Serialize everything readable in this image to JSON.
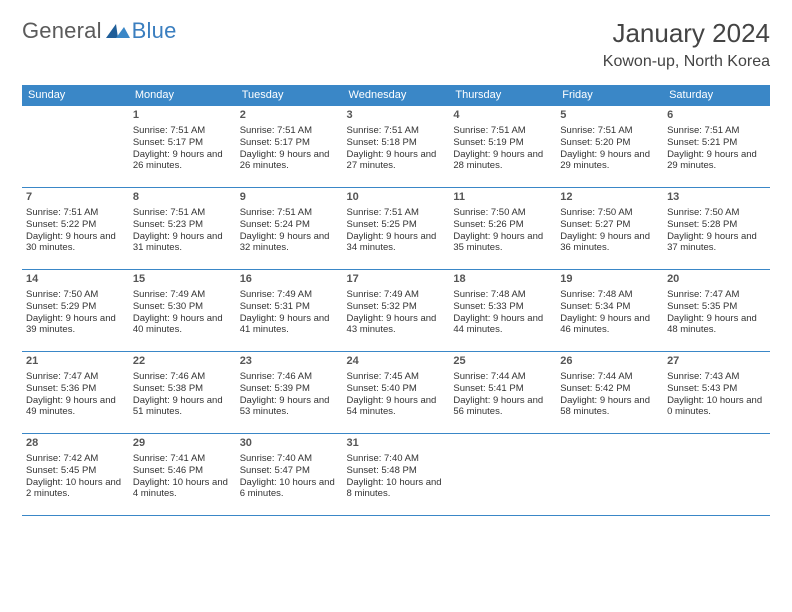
{
  "logo": {
    "text1": "General",
    "text2": "Blue",
    "color1": "#5b5b5b",
    "color2": "#3a7ebf"
  },
  "title": "January 2024",
  "location": "Kowon-up, North Korea",
  "header_bg": "#3a87c7",
  "border_color": "#3a87c7",
  "weekdays": [
    "Sunday",
    "Monday",
    "Tuesday",
    "Wednesday",
    "Thursday",
    "Friday",
    "Saturday"
  ],
  "weeks": [
    [
      null,
      {
        "n": "1",
        "sr": "7:51 AM",
        "ss": "5:17 PM",
        "dl": "9 hours and 26 minutes."
      },
      {
        "n": "2",
        "sr": "7:51 AM",
        "ss": "5:17 PM",
        "dl": "9 hours and 26 minutes."
      },
      {
        "n": "3",
        "sr": "7:51 AM",
        "ss": "5:18 PM",
        "dl": "9 hours and 27 minutes."
      },
      {
        "n": "4",
        "sr": "7:51 AM",
        "ss": "5:19 PM",
        "dl": "9 hours and 28 minutes."
      },
      {
        "n": "5",
        "sr": "7:51 AM",
        "ss": "5:20 PM",
        "dl": "9 hours and 29 minutes."
      },
      {
        "n": "6",
        "sr": "7:51 AM",
        "ss": "5:21 PM",
        "dl": "9 hours and 29 minutes."
      }
    ],
    [
      {
        "n": "7",
        "sr": "7:51 AM",
        "ss": "5:22 PM",
        "dl": "9 hours and 30 minutes."
      },
      {
        "n": "8",
        "sr": "7:51 AM",
        "ss": "5:23 PM",
        "dl": "9 hours and 31 minutes."
      },
      {
        "n": "9",
        "sr": "7:51 AM",
        "ss": "5:24 PM",
        "dl": "9 hours and 32 minutes."
      },
      {
        "n": "10",
        "sr": "7:51 AM",
        "ss": "5:25 PM",
        "dl": "9 hours and 34 minutes."
      },
      {
        "n": "11",
        "sr": "7:50 AM",
        "ss": "5:26 PM",
        "dl": "9 hours and 35 minutes."
      },
      {
        "n": "12",
        "sr": "7:50 AM",
        "ss": "5:27 PM",
        "dl": "9 hours and 36 minutes."
      },
      {
        "n": "13",
        "sr": "7:50 AM",
        "ss": "5:28 PM",
        "dl": "9 hours and 37 minutes."
      }
    ],
    [
      {
        "n": "14",
        "sr": "7:50 AM",
        "ss": "5:29 PM",
        "dl": "9 hours and 39 minutes."
      },
      {
        "n": "15",
        "sr": "7:49 AM",
        "ss": "5:30 PM",
        "dl": "9 hours and 40 minutes."
      },
      {
        "n": "16",
        "sr": "7:49 AM",
        "ss": "5:31 PM",
        "dl": "9 hours and 41 minutes."
      },
      {
        "n": "17",
        "sr": "7:49 AM",
        "ss": "5:32 PM",
        "dl": "9 hours and 43 minutes."
      },
      {
        "n": "18",
        "sr": "7:48 AM",
        "ss": "5:33 PM",
        "dl": "9 hours and 44 minutes."
      },
      {
        "n": "19",
        "sr": "7:48 AM",
        "ss": "5:34 PM",
        "dl": "9 hours and 46 minutes."
      },
      {
        "n": "20",
        "sr": "7:47 AM",
        "ss": "5:35 PM",
        "dl": "9 hours and 48 minutes."
      }
    ],
    [
      {
        "n": "21",
        "sr": "7:47 AM",
        "ss": "5:36 PM",
        "dl": "9 hours and 49 minutes."
      },
      {
        "n": "22",
        "sr": "7:46 AM",
        "ss": "5:38 PM",
        "dl": "9 hours and 51 minutes."
      },
      {
        "n": "23",
        "sr": "7:46 AM",
        "ss": "5:39 PM",
        "dl": "9 hours and 53 minutes."
      },
      {
        "n": "24",
        "sr": "7:45 AM",
        "ss": "5:40 PM",
        "dl": "9 hours and 54 minutes."
      },
      {
        "n": "25",
        "sr": "7:44 AM",
        "ss": "5:41 PM",
        "dl": "9 hours and 56 minutes."
      },
      {
        "n": "26",
        "sr": "7:44 AM",
        "ss": "5:42 PM",
        "dl": "9 hours and 58 minutes."
      },
      {
        "n": "27",
        "sr": "7:43 AM",
        "ss": "5:43 PM",
        "dl": "10 hours and 0 minutes."
      }
    ],
    [
      {
        "n": "28",
        "sr": "7:42 AM",
        "ss": "5:45 PM",
        "dl": "10 hours and 2 minutes."
      },
      {
        "n": "29",
        "sr": "7:41 AM",
        "ss": "5:46 PM",
        "dl": "10 hours and 4 minutes."
      },
      {
        "n": "30",
        "sr": "7:40 AM",
        "ss": "5:47 PM",
        "dl": "10 hours and 6 minutes."
      },
      {
        "n": "31",
        "sr": "7:40 AM",
        "ss": "5:48 PM",
        "dl": "10 hours and 8 minutes."
      },
      null,
      null,
      null
    ]
  ]
}
